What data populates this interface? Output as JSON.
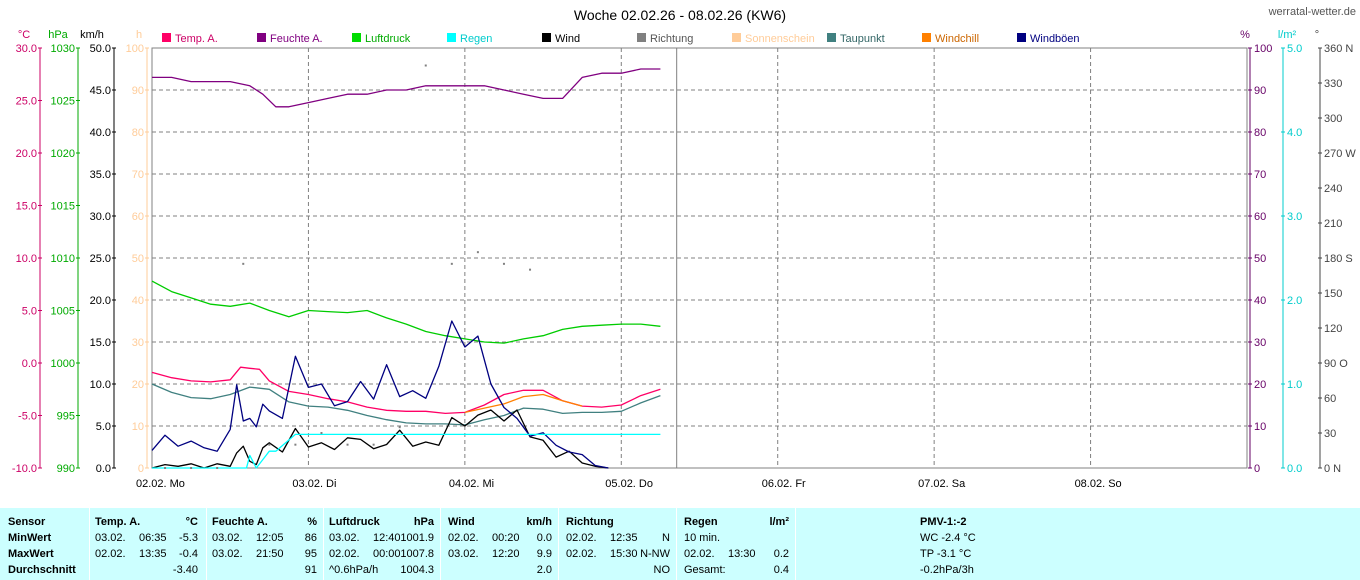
{
  "site": "werratal-wetter.de",
  "chart_data": {
    "type": "line",
    "title": "Woche 02.02.26 - 08.02.26 (KW6)",
    "x_days": [
      "02.02.  Mo",
      "03.02.  Di",
      "04.02.  Mi",
      "05.02.  Do",
      "06.02.  Fr",
      "07.02.  Sa",
      "08.02.  So"
    ],
    "x_hours_range": [
      0,
      168
    ],
    "axes": [
      {
        "id": "temp",
        "unit": "°C",
        "color": "#cc0066",
        "range": [
          -10,
          30
        ],
        "ticks": [
          "30.0",
          "25.0",
          "20.0",
          "15.0",
          "10.0",
          "5.0",
          "0.0",
          "-5.0",
          "-10.0"
        ]
      },
      {
        "id": "press",
        "unit": "hPa",
        "color": "#00aa00",
        "range": [
          990,
          1030
        ],
        "ticks": [
          "1030",
          "1025",
          "1020",
          "1015",
          "1010",
          "1005",
          "1000",
          "995",
          "990"
        ]
      },
      {
        "id": "wind",
        "unit": "km/h",
        "color": "#000000",
        "range": [
          0,
          50
        ],
        "ticks": [
          "50.0",
          "45.0",
          "40.0",
          "35.0",
          "30.0",
          "25.0",
          "20.0",
          "15.0",
          "10.0",
          "5.0",
          "0.0"
        ]
      },
      {
        "id": "sun",
        "unit": "h",
        "color": "#ffcc99",
        "range": [
          0,
          100
        ],
        "ticks": [
          "100",
          "90",
          "80",
          "70",
          "60",
          "50",
          "40",
          "30",
          "20",
          "10",
          "0"
        ]
      },
      {
        "id": "hum",
        "unit": "%",
        "color": "#660066",
        "range": [
          0,
          100
        ],
        "ticks": [
          "100",
          "90",
          "80",
          "70",
          "60",
          "50",
          "40",
          "30",
          "20",
          "10",
          "0"
        ]
      },
      {
        "id": "rain",
        "unit": "l/m²",
        "color": "#00cccc",
        "range": [
          0,
          5
        ],
        "ticks": [
          "5.0",
          "4.0",
          "3.0",
          "2.0",
          "1.0",
          "0.0"
        ]
      },
      {
        "id": "dir",
        "unit": "°",
        "color": "#444444",
        "range": [
          0,
          360
        ],
        "ticks": [
          "360 N",
          "330",
          "300",
          "270 W",
          "240",
          "210",
          "180 S",
          "150",
          "120",
          "90 O",
          "60",
          "30",
          "0 N"
        ]
      }
    ],
    "legend": [
      {
        "name": "Temp. A.",
        "color": "#ff0066",
        "text_color": "#cc0066"
      },
      {
        "name": "Feuchte A.",
        "color": "#800080",
        "text_color": "#800080"
      },
      {
        "name": "Luftdruck",
        "color": "#00dd00",
        "text_color": "#00aa00"
      },
      {
        "name": "Regen",
        "color": "#00ffff",
        "text_color": "#00cccc"
      },
      {
        "name": "Wind",
        "color": "#000000",
        "text_color": "#000000"
      },
      {
        "name": "Richtung",
        "color": "#808080",
        "text_color": "#555555"
      },
      {
        "name": "Sonnenschein",
        "color": "#ffcc99",
        "text_color": "#ffcc99"
      },
      {
        "name": "Taupunkt",
        "color": "#408080",
        "text_color": "#336666"
      },
      {
        "name": "Windchill",
        "color": "#ff8000",
        "text_color": "#cc6600"
      },
      {
        "name": "Windböen",
        "color": "#000080",
        "text_color": "#000080"
      }
    ],
    "series": [
      {
        "name": "Feuchte A.",
        "axis": "hum",
        "color": "#800080",
        "x": [
          0,
          3,
          6,
          9,
          12,
          15,
          17,
          19,
          21,
          24,
          27,
          30,
          33,
          36,
          39,
          42,
          45,
          48,
          51,
          54,
          57,
          60,
          63,
          66,
          69,
          72,
          75,
          78
        ],
        "y": [
          93,
          93,
          92,
          92,
          92,
          91,
          89,
          86,
          86,
          87,
          88,
          89,
          89,
          90,
          90,
          91,
          91,
          91,
          91,
          90,
          89,
          88,
          88,
          93,
          94,
          94,
          95,
          95
        ]
      },
      {
        "name": "Luftdruck",
        "axis": "press",
        "color": "#00cc00",
        "x": [
          0,
          3,
          6,
          9,
          12,
          15,
          18,
          21,
          24,
          27,
          30,
          33,
          36,
          39,
          42,
          45,
          48,
          51,
          54,
          57,
          60,
          63,
          66,
          69,
          72,
          75,
          78
        ],
        "y": [
          1007.8,
          1006.8,
          1006.2,
          1005.6,
          1005.4,
          1005.7,
          1005.0,
          1004.4,
          1005.0,
          1004.9,
          1004.8,
          1005.0,
          1004.3,
          1003.7,
          1003.0,
          1002.6,
          1002.3,
          1002.0,
          1001.9,
          1002.3,
          1002.6,
          1003.2,
          1003.5,
          1003.6,
          1003.7,
          1003.7,
          1003.5
        ]
      },
      {
        "name": "Temp. A.",
        "axis": "temp",
        "color": "#ff0066",
        "x": [
          0,
          3,
          6,
          9,
          12,
          13.6,
          15,
          16.5,
          18,
          21,
          24,
          27,
          30,
          33,
          36,
          39,
          42,
          45,
          48,
          51,
          54,
          57,
          60,
          63,
          66,
          69,
          72,
          75,
          78
        ],
        "y": [
          -0.9,
          -1.4,
          -1.7,
          -1.8,
          -1.6,
          -0.4,
          -0.5,
          -0.6,
          -1.7,
          -2.7,
          -3.0,
          -3.4,
          -3.7,
          -4.2,
          -4.5,
          -4.6,
          -4.6,
          -4.8,
          -4.7,
          -4.0,
          -3.0,
          -2.6,
          -2.6,
          -3.6,
          -4.1,
          -4.2,
          -4.0,
          -3.1,
          -2.5
        ]
      },
      {
        "name": "Taupunkt",
        "axis": "temp",
        "color": "#408080",
        "x": [
          0,
          3,
          6,
          9,
          12,
          15,
          18,
          21,
          24,
          27,
          30,
          33,
          36,
          39,
          42,
          45,
          48,
          51,
          54,
          57,
          60,
          63,
          66,
          69,
          72,
          75,
          78
        ],
        "y": [
          -2.0,
          -2.8,
          -3.3,
          -3.4,
          -3.0,
          -2.3,
          -2.5,
          -3.7,
          -4.1,
          -4.2,
          -4.5,
          -5.0,
          -5.4,
          -5.7,
          -5.8,
          -5.8,
          -5.9,
          -5.4,
          -5.0,
          -4.3,
          -4.4,
          -4.8,
          -4.7,
          -4.7,
          -4.6,
          -3.8,
          -3.1
        ]
      },
      {
        "name": "Windchill",
        "axis": "temp",
        "color": "#ff8000",
        "x": [
          48,
          51,
          54,
          57,
          60,
          63,
          66
        ],
        "y": [
          -4.7,
          -4.3,
          -3.9,
          -3.2,
          -3.0,
          -3.6,
          -4.1
        ]
      },
      {
        "name": "Wind",
        "axis": "wind",
        "color": "#000000",
        "x": [
          0,
          2,
          4,
          6,
          8,
          10,
          12,
          13,
          14,
          15,
          16,
          17,
          18,
          20,
          22,
          24,
          26,
          28,
          30,
          32,
          34,
          36,
          38,
          40,
          42,
          44,
          46,
          48,
          50,
          52,
          54,
          56,
          58,
          60,
          62,
          64,
          66,
          68,
          70
        ],
        "y": [
          0,
          0.4,
          0.2,
          0.5,
          0,
          0.5,
          0.2,
          1.8,
          2.6,
          0.8,
          0.4,
          2.4,
          3.0,
          1.9,
          4.7,
          2.5,
          3.0,
          2.2,
          3.6,
          3.4,
          2.3,
          2.8,
          4.5,
          2.6,
          3.1,
          2.7,
          6.0,
          5.0,
          6.3,
          6.9,
          5.6,
          6.9,
          3.7,
          3.3,
          1.3,
          2.0,
          0.6,
          0.2,
          0
        ]
      },
      {
        "name": "Windböen",
        "axis": "wind",
        "color": "#000080",
        "x": [
          0,
          2,
          4,
          6,
          8,
          10,
          12,
          13,
          14,
          15,
          16,
          17,
          18,
          20,
          22,
          24,
          26,
          28,
          30,
          32,
          34,
          36,
          38,
          40,
          42,
          44,
          46,
          48,
          50,
          52,
          54,
          56,
          58,
          60,
          62,
          64,
          66,
          68,
          70
        ],
        "y": [
          2.1,
          3.9,
          2.6,
          3.2,
          2.4,
          2.0,
          4.6,
          9.9,
          5.6,
          5.9,
          4.9,
          7.6,
          6.8,
          5.9,
          13.3,
          9.6,
          10.0,
          7.4,
          7.9,
          10.3,
          8.2,
          12.3,
          8.5,
          9.2,
          8.3,
          12.1,
          17.5,
          14.4,
          15.7,
          10.0,
          7.2,
          5.9,
          3.8,
          4.2,
          2.7,
          1.9,
          1.6,
          0.3,
          0
        ]
      },
      {
        "name": "Regen",
        "axis": "rain",
        "color": "#00ffff",
        "x": [
          0,
          14.5,
          15,
          16,
          17,
          17.5,
          18,
          19,
          22,
          30,
          40,
          50,
          60,
          70,
          78
        ],
        "y": [
          0,
          0,
          0.15,
          0,
          0.1,
          0.15,
          0.2,
          0.2,
          0.4,
          0.4,
          0.4,
          0.4,
          0.4,
          0.4,
          0.4
        ]
      }
    ],
    "direction_points": {
      "axis": "dir",
      "color": "#808080",
      "x": [
        2,
        6,
        10,
        14,
        18,
        22,
        26,
        30,
        34,
        38,
        42,
        46,
        50,
        54,
        58
      ],
      "y": [
        0,
        0,
        0,
        175,
        20,
        20,
        30,
        20,
        20,
        35,
        345,
        175,
        185,
        175,
        170
      ]
    },
    "current_x": 80.5
  },
  "table": {
    "row_labels": {
      "sensor": "Sensor",
      "min": "MinWert",
      "max": "MaxWert",
      "avg": "Durchschnitt"
    },
    "temp": {
      "head": "Temp. A.",
      "unit": "°C",
      "min_date": "03.02.",
      "min_time": "06:35",
      "min_val": "-5.3",
      "max_date": "02.02.",
      "max_time": "13:35",
      "max_val": "-0.4",
      "avg": "-3.40"
    },
    "hum": {
      "head": "Feuchte A.",
      "unit": "%",
      "min_date": "03.02.",
      "min_time": "12:05",
      "min_val": "86",
      "max_date": "03.02.",
      "max_time": "21:50",
      "max_val": "95",
      "avg": "91"
    },
    "press": {
      "head": "Luftdruck",
      "unit": "hPa",
      "min_date": "03.02.",
      "min_time": "12:40",
      "min_val": "1001.9",
      "max_date": "02.02.",
      "max_time": "00:00",
      "max_val": "1007.8",
      "trend": "^0.6hPa/h",
      "avg": "1004.3"
    },
    "wind": {
      "head": "Wind",
      "unit": "km/h",
      "min_date": "02.02.",
      "min_time": "00:20",
      "min_val": "0.0",
      "max_date": "03.02.",
      "max_time": "12:20",
      "max_val": "9.9",
      "avg": "2.0"
    },
    "dir": {
      "head": "Richtung",
      "min_date": "02.02.",
      "min_time": "12:35",
      "min_val": "N",
      "max_date": "02.02.",
      "max_time": "15:30",
      "max_val": "N-NW",
      "avg": "NO"
    },
    "rain": {
      "head": "Regen",
      "unit": "l/m²",
      "min_label": "10 min.",
      "max_date": "02.02.",
      "max_time": "13:30",
      "max_val": "0.2",
      "avg_label": "Gesamt:",
      "avg": "0.4"
    },
    "pmv": {
      "head": "PMV-1:-2",
      "wc": "WC -2.4 °C",
      "tp": "TP -3.1 °C",
      "trend": "-0.2hPa/3h"
    }
  }
}
